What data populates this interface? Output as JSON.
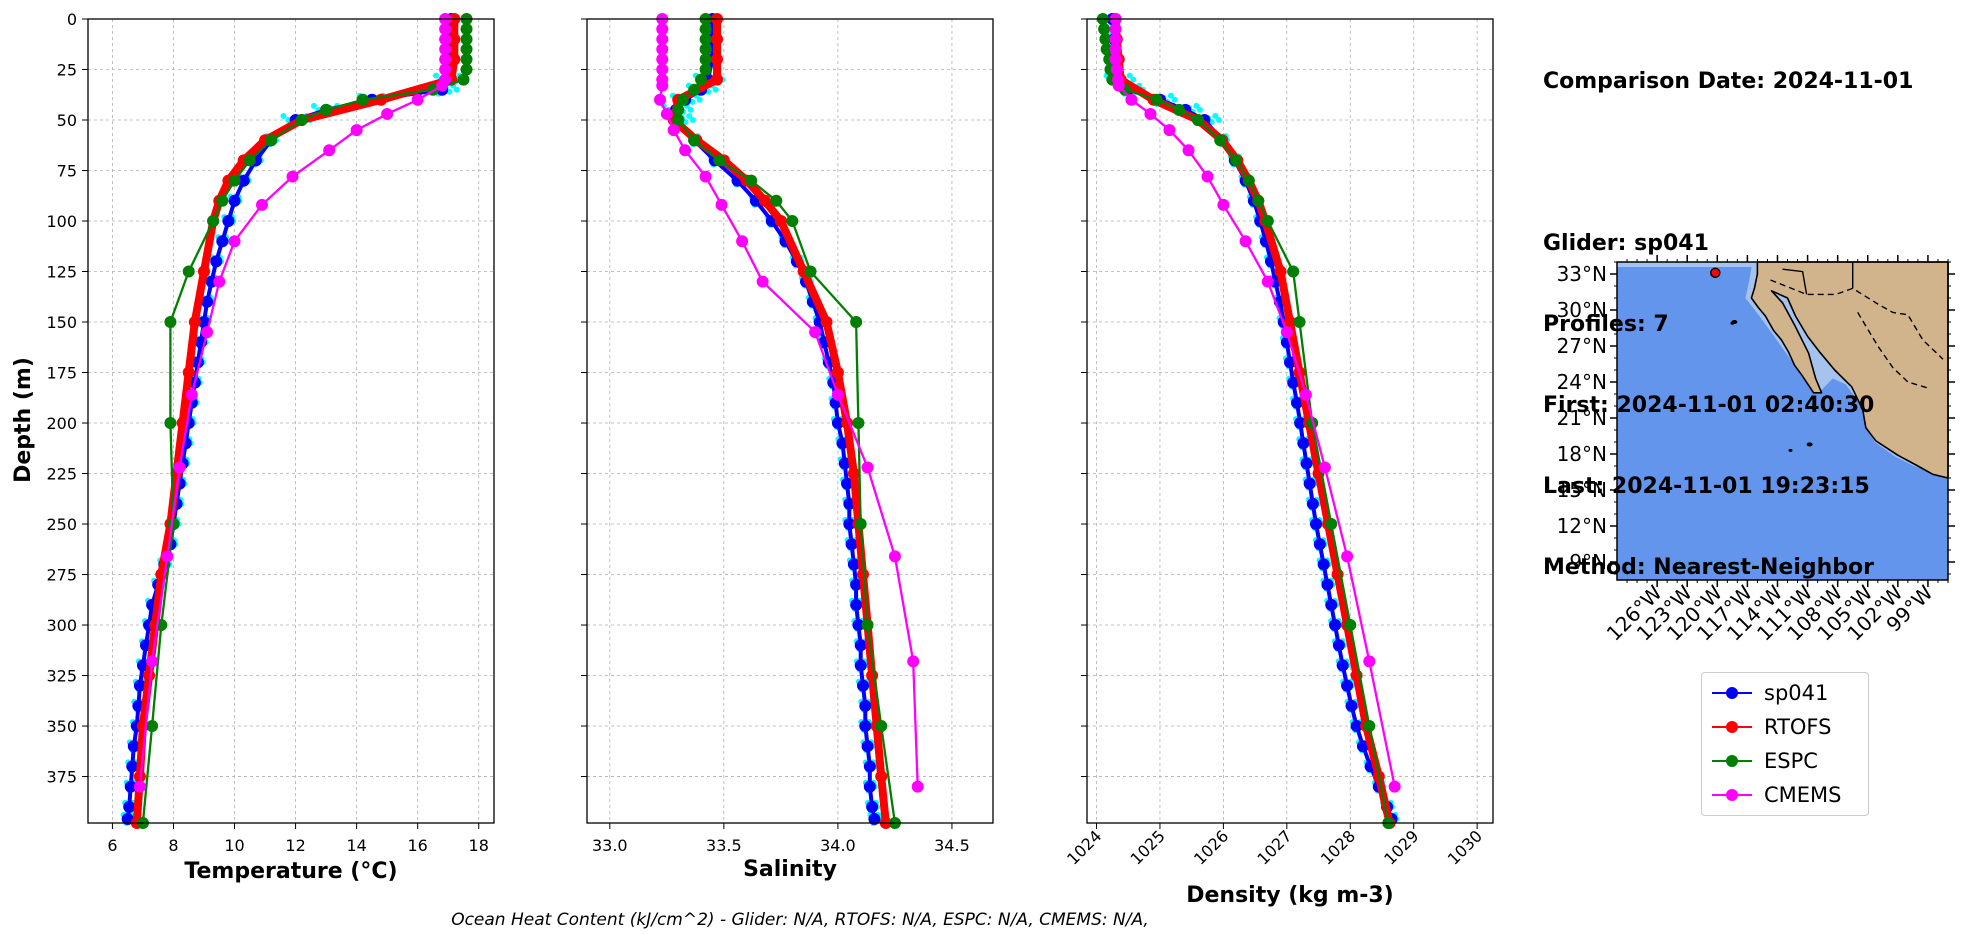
{
  "chart_data": [
    {
      "type": "line",
      "panel": "temperature",
      "xlabel": "Temperature (°C)",
      "ylabel": "Depth (m)",
      "xlim": [
        5.2,
        18.5
      ],
      "ylim": [
        398,
        0
      ],
      "xticks": [
        6,
        8,
        10,
        12,
        14,
        16,
        18
      ],
      "yticks": [
        0,
        25,
        50,
        75,
        100,
        125,
        150,
        175,
        200,
        225,
        250,
        275,
        300,
        325,
        350,
        375
      ],
      "grid": true,
      "series": [
        {
          "name": "sp041",
          "color": "#0000ff",
          "depth": [
            0,
            10,
            20,
            30,
            35,
            40,
            45,
            50,
            60,
            70,
            80,
            90,
            100,
            110,
            120,
            130,
            140,
            150,
            160,
            170,
            180,
            190,
            200,
            210,
            220,
            230,
            240,
            250,
            260,
            270,
            280,
            290,
            300,
            310,
            320,
            330,
            340,
            350,
            360,
            370,
            380,
            390,
            396
          ],
          "values": [
            17.1,
            17.1,
            17.1,
            17.0,
            16.8,
            14.5,
            13.0,
            12.0,
            11.2,
            10.7,
            10.3,
            10.0,
            9.8,
            9.6,
            9.4,
            9.25,
            9.1,
            9.0,
            8.9,
            8.8,
            8.7,
            8.6,
            8.5,
            8.4,
            8.3,
            8.2,
            8.1,
            8.0,
            7.9,
            7.7,
            7.5,
            7.3,
            7.2,
            7.1,
            7.0,
            6.9,
            6.85,
            6.8,
            6.7,
            6.65,
            6.6,
            6.55,
            6.5
          ]
        },
        {
          "name": "RTOFS",
          "color": "#ff0000",
          "depth": [
            0,
            10,
            20,
            30,
            40,
            50,
            60,
            70,
            80,
            90,
            100,
            125,
            150,
            175,
            200,
            225,
            250,
            275,
            300,
            325,
            350,
            375,
            398
          ],
          "values": [
            17.2,
            17.2,
            17.2,
            17.1,
            14.8,
            12.2,
            11.0,
            10.3,
            9.8,
            9.5,
            9.3,
            9.0,
            8.7,
            8.5,
            8.3,
            8.1,
            7.9,
            7.6,
            7.4,
            7.2,
            7.0,
            6.9,
            6.8
          ]
        },
        {
          "name": "ESPC",
          "color": "#008000",
          "depth": [
            0,
            5,
            10,
            15,
            20,
            25,
            30,
            35,
            40,
            45,
            50,
            60,
            70,
            80,
            90,
            100,
            125,
            150,
            200,
            250,
            300,
            350,
            398
          ],
          "values": [
            17.6,
            17.6,
            17.6,
            17.6,
            17.6,
            17.6,
            17.5,
            16.5,
            14.2,
            13.0,
            12.2,
            11.2,
            10.5,
            10.0,
            9.6,
            9.3,
            8.5,
            7.9,
            7.9,
            8.0,
            7.6,
            7.3,
            7.0
          ]
        },
        {
          "name": "CMEMS",
          "color": "#ff00ff",
          "depth": [
            0,
            5,
            10,
            15,
            20,
            25,
            30,
            33,
            40,
            47,
            55,
            65,
            78,
            92,
            110,
            130,
            155,
            186,
            222,
            266,
            318,
            380
          ],
          "values": [
            16.9,
            16.9,
            16.9,
            16.9,
            16.9,
            16.9,
            16.9,
            16.8,
            16.0,
            15.0,
            14.0,
            13.1,
            11.9,
            10.9,
            10.0,
            9.5,
            9.1,
            8.6,
            8.2,
            7.8,
            7.3,
            6.9
          ]
        }
      ]
    },
    {
      "type": "line",
      "panel": "salinity",
      "xlabel": "Salinity",
      "xlim": [
        32.9,
        34.68
      ],
      "ylim": [
        398,
        0
      ],
      "xticks": [
        33.0,
        33.5,
        34.0,
        34.5
      ],
      "grid": true,
      "series": [
        {
          "name": "sp041",
          "color": "#0000ff",
          "depth": [
            0,
            10,
            20,
            30,
            35,
            40,
            45,
            50,
            60,
            70,
            80,
            90,
            100,
            110,
            120,
            130,
            140,
            150,
            160,
            170,
            180,
            190,
            200,
            210,
            220,
            230,
            240,
            250,
            260,
            270,
            280,
            290,
            300,
            310,
            320,
            330,
            340,
            350,
            360,
            370,
            380,
            390,
            396
          ],
          "values": [
            33.45,
            33.45,
            33.45,
            33.43,
            33.4,
            33.33,
            33.29,
            33.3,
            33.37,
            33.46,
            33.56,
            33.64,
            33.71,
            33.77,
            33.82,
            33.86,
            33.89,
            33.92,
            33.94,
            33.96,
            33.98,
            33.99,
            34.0,
            34.02,
            34.03,
            34.04,
            34.05,
            34.05,
            34.06,
            34.07,
            34.08,
            34.08,
            34.09,
            34.1,
            34.1,
            34.11,
            34.12,
            34.12,
            34.13,
            34.14,
            34.14,
            34.15,
            34.16
          ]
        },
        {
          "name": "RTOFS",
          "color": "#ff0000",
          "depth": [
            0,
            10,
            20,
            30,
            40,
            50,
            60,
            70,
            80,
            90,
            100,
            125,
            150,
            175,
            200,
            225,
            250,
            275,
            300,
            325,
            350,
            375,
            398
          ],
          "values": [
            33.47,
            33.47,
            33.47,
            33.47,
            33.3,
            33.28,
            33.38,
            33.5,
            33.6,
            33.68,
            33.75,
            33.85,
            33.95,
            34.0,
            34.04,
            34.07,
            34.09,
            34.11,
            34.13,
            34.15,
            34.17,
            34.19,
            34.21
          ]
        },
        {
          "name": "ESPC",
          "color": "#008000",
          "depth": [
            0,
            5,
            10,
            15,
            20,
            25,
            30,
            35,
            40,
            45,
            50,
            60,
            70,
            80,
            90,
            100,
            125,
            150,
            200,
            250,
            300,
            350,
            398
          ],
          "values": [
            33.42,
            33.42,
            33.42,
            33.42,
            33.42,
            33.42,
            33.4,
            33.37,
            33.32,
            33.3,
            33.3,
            33.37,
            33.48,
            33.62,
            33.73,
            33.8,
            33.88,
            34.08,
            34.09,
            34.1,
            34.13,
            34.19,
            34.25
          ]
        },
        {
          "name": "CMEMS",
          "color": "#ff00ff",
          "depth": [
            0,
            5,
            10,
            15,
            20,
            25,
            30,
            33,
            40,
            47,
            55,
            65,
            78,
            92,
            110,
            130,
            155,
            186,
            222,
            266,
            318,
            380
          ],
          "values": [
            33.23,
            33.23,
            33.23,
            33.23,
            33.23,
            33.23,
            33.23,
            33.23,
            33.22,
            33.25,
            33.28,
            33.33,
            33.42,
            33.49,
            33.58,
            33.67,
            33.9,
            34.0,
            34.13,
            34.25,
            34.33,
            34.35
          ]
        }
      ]
    },
    {
      "type": "line",
      "panel": "density",
      "xlabel": "Density (kg m-3)",
      "xlim": [
        1023.85,
        1030.25
      ],
      "ylim": [
        398,
        0
      ],
      "xticks": [
        1024,
        1025,
        1026,
        1027,
        1028,
        1029,
        1030
      ],
      "grid": true,
      "series": [
        {
          "name": "sp041",
          "color": "#0000ff",
          "depth": [
            0,
            10,
            20,
            30,
            35,
            40,
            45,
            50,
            60,
            70,
            80,
            90,
            100,
            110,
            120,
            130,
            140,
            150,
            160,
            170,
            180,
            190,
            200,
            210,
            220,
            230,
            240,
            250,
            260,
            270,
            280,
            290,
            300,
            310,
            320,
            330,
            340,
            350,
            360,
            370,
            380,
            390,
            396
          ],
          "values": [
            1024.25,
            1024.28,
            1024.3,
            1024.35,
            1024.5,
            1025.0,
            1025.4,
            1025.7,
            1025.98,
            1026.18,
            1026.35,
            1026.48,
            1026.58,
            1026.67,
            1026.75,
            1026.82,
            1026.89,
            1026.95,
            1027.0,
            1027.05,
            1027.1,
            1027.16,
            1027.21,
            1027.26,
            1027.31,
            1027.36,
            1027.41,
            1027.46,
            1027.52,
            1027.58,
            1027.64,
            1027.7,
            1027.76,
            1027.82,
            1027.88,
            1027.95,
            1028.02,
            1028.1,
            1028.2,
            1028.32,
            1028.45,
            1028.58,
            1028.65
          ]
        },
        {
          "name": "RTOFS",
          "color": "#ff0000",
          "depth": [
            0,
            10,
            20,
            30,
            40,
            50,
            60,
            70,
            80,
            90,
            100,
            125,
            150,
            175,
            200,
            225,
            250,
            275,
            300,
            325,
            350,
            375,
            398
          ],
          "values": [
            1024.3,
            1024.32,
            1024.35,
            1024.38,
            1024.9,
            1025.6,
            1025.98,
            1026.22,
            1026.4,
            1026.55,
            1026.66,
            1026.9,
            1027.05,
            1027.2,
            1027.35,
            1027.5,
            1027.65,
            1027.8,
            1027.95,
            1028.1,
            1028.25,
            1028.45,
            1028.62
          ]
        },
        {
          "name": "ESPC",
          "color": "#008000",
          "depth": [
            0,
            5,
            10,
            15,
            20,
            25,
            30,
            35,
            40,
            45,
            50,
            60,
            70,
            80,
            90,
            100,
            125,
            150,
            200,
            250,
            300,
            350,
            398
          ],
          "values": [
            1024.1,
            1024.12,
            1024.14,
            1024.16,
            1024.2,
            1024.22,
            1024.25,
            1024.45,
            1024.95,
            1025.3,
            1025.6,
            1025.95,
            1026.2,
            1026.4,
            1026.55,
            1026.7,
            1027.1,
            1027.2,
            1027.4,
            1027.7,
            1028.0,
            1028.3,
            1028.6
          ]
        },
        {
          "name": "CMEMS",
          "color": "#ff00ff",
          "depth": [
            0,
            5,
            10,
            15,
            20,
            25,
            30,
            33,
            40,
            47,
            55,
            65,
            78,
            92,
            110,
            130,
            155,
            186,
            222,
            266,
            318,
            380
          ],
          "values": [
            1024.3,
            1024.3,
            1024.3,
            1024.3,
            1024.3,
            1024.32,
            1024.34,
            1024.35,
            1024.55,
            1024.85,
            1025.15,
            1025.45,
            1025.75,
            1026.0,
            1026.35,
            1026.7,
            1027.0,
            1027.3,
            1027.6,
            1027.95,
            1028.3,
            1028.7
          ]
        }
      ]
    }
  ],
  "info": {
    "lines": [
      "Comparison Date: 2024-11-01",
      "",
      "Glider: sp041",
      "Profiles: 7",
      "First: 2024-11-01 02:40:30",
      "Last: 2024-11-01 19:23:15",
      "Method: Nearest-Neighbor"
    ]
  },
  "map": {
    "lat_labels": [
      "33°N",
      "30°N",
      "27°N",
      "24°N",
      "21°N",
      "18°N",
      "15°N",
      "12°N",
      "9°N"
    ],
    "lon_labels": [
      "126°W",
      "123°W",
      "120°W",
      "117°W",
      "114°W",
      "111°W",
      "108°W",
      "105°W",
      "102°W",
      "99°W"
    ],
    "ocean_color": "#6495ed",
    "shelf_color": "#a6c3ee",
    "land_color": "#d2b48c",
    "glider_color": "#ff0000"
  },
  "legend": {
    "items": [
      {
        "label": "sp041",
        "color": "#0000ff"
      },
      {
        "label": "RTOFS",
        "color": "#ff0000"
      },
      {
        "label": "ESPC",
        "color": "#008000"
      },
      {
        "label": "CMEMS",
        "color": "#ff00ff"
      }
    ]
  },
  "footer": "Ocean Heat Content (kJ/cm^2) - Glider: N/A,  RTOFS: N/A,  ESPC: N/A,  CMEMS: N/A,",
  "profile_scatter_color": "#00ffff"
}
